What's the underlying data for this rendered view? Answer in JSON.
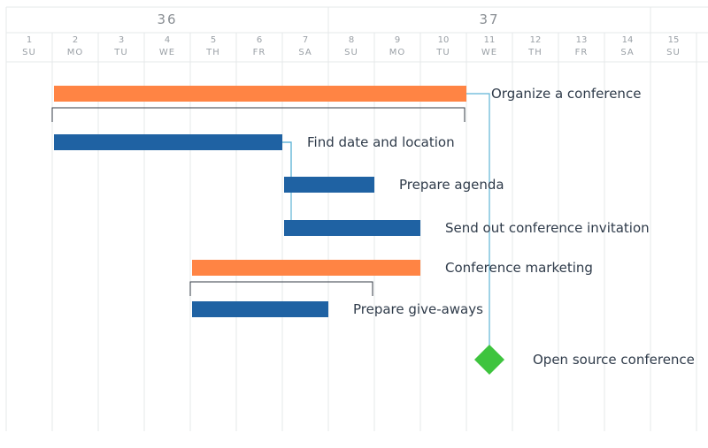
{
  "chart_data": {
    "type": "gantt",
    "weeks": [
      {
        "label": "36",
        "first_day_index": 0,
        "last_day_index": 6
      },
      {
        "label": "37",
        "first_day_index": 7,
        "last_day_index": 13
      }
    ],
    "days": [
      {
        "num": "1",
        "name": "SU"
      },
      {
        "num": "2",
        "name": "MO"
      },
      {
        "num": "3",
        "name": "TU"
      },
      {
        "num": "4",
        "name": "WE"
      },
      {
        "num": "5",
        "name": "TH"
      },
      {
        "num": "6",
        "name": "FR"
      },
      {
        "num": "7",
        "name": "SA"
      },
      {
        "num": "8",
        "name": "SU"
      },
      {
        "num": "9",
        "name": "MO"
      },
      {
        "num": "10",
        "name": "TU"
      },
      {
        "num": "11",
        "name": "WE"
      },
      {
        "num": "12",
        "name": "TH"
      },
      {
        "num": "13",
        "name": "FR"
      },
      {
        "num": "14",
        "name": "SA"
      },
      {
        "num": "15",
        "name": "SU"
      }
    ],
    "tasks": [
      {
        "id": "organize",
        "name": "Organize a conference",
        "type": "group",
        "start": 1,
        "end": 10,
        "bracket_end": 9
      },
      {
        "id": "find",
        "name": "Find date and location",
        "type": "task",
        "start": 1,
        "end": 6
      },
      {
        "id": "agenda",
        "name": "Prepare agenda",
        "type": "task",
        "start": 6,
        "end": 8
      },
      {
        "id": "invite",
        "name": "Send out conference invitation",
        "type": "task",
        "start": 6,
        "end": 9
      },
      {
        "id": "marketing",
        "name": "Conference marketing",
        "type": "group",
        "start": 4,
        "end": 9,
        "bracket_end": 7
      },
      {
        "id": "giveaways",
        "name": "Prepare give-aways",
        "type": "task",
        "start": 4,
        "end": 7
      },
      {
        "id": "milestone",
        "name": "Open source conference",
        "type": "milestone",
        "start": 10.5
      }
    ],
    "dependencies": [
      {
        "from": "organize",
        "to": "milestone"
      },
      {
        "from": "find",
        "to": "agenda"
      },
      {
        "from": "find",
        "to": "invite"
      }
    ],
    "colors": {
      "group": "#ff8444",
      "task": "#1f62a3",
      "milestone": "#3ec43e",
      "dependency": "#5fb3d6",
      "grid": "#e6e8ea"
    }
  }
}
